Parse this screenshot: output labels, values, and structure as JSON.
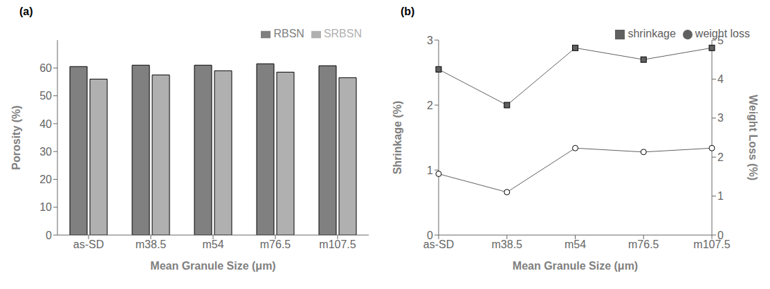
{
  "chart_data": [
    {
      "type": "bar",
      "title": "(a)",
      "categories": [
        "as-SD",
        "m38.5",
        "m54",
        "m76.5",
        "m107.5"
      ],
      "series": [
        {
          "name": "RBSN",
          "color": "#808080",
          "values": [
            60.5,
            61.0,
            61.0,
            61.5,
            60.8
          ]
        },
        {
          "name": "SRBSN",
          "color": "#b0b0b0",
          "values": [
            56.0,
            57.5,
            59.0,
            58.5,
            56.5
          ]
        }
      ],
      "xlabel": "Mean Granule Size (μm)",
      "ylabel": "Porosity (%)",
      "ylim": [
        0,
        70
      ],
      "yticks": [
        0,
        10,
        20,
        30,
        40,
        50,
        60
      ],
      "grid": false,
      "legend": "upper right"
    },
    {
      "type": "line",
      "title": "(b)",
      "categories": [
        "as-SD",
        "m38.5",
        "m54",
        "m76.5",
        "m107.5"
      ],
      "series": [
        {
          "name": "shrinkage",
          "color": "#606060",
          "marker": "square",
          "values": [
            2.55,
            2.0,
            2.88,
            2.7,
            2.88
          ]
        },
        {
          "name": "weight loss",
          "color": "#606060",
          "marker": "circle",
          "axis": "y2",
          "values": [
            1.57,
            1.1,
            2.23,
            2.13,
            2.23
          ]
        }
      ],
      "xlabel": "Mean Granule Size (μm)",
      "ylabel": "Shrinkage (%)",
      "y2label": "Weight Loss (%)",
      "ylim": [
        0,
        3
      ],
      "yticks": [
        0,
        1,
        2,
        3
      ],
      "y2lim": [
        0,
        5
      ],
      "y2ticks": [
        0,
        1,
        2,
        3,
        4,
        5
      ],
      "grid": false,
      "legend": "upper right"
    }
  ]
}
